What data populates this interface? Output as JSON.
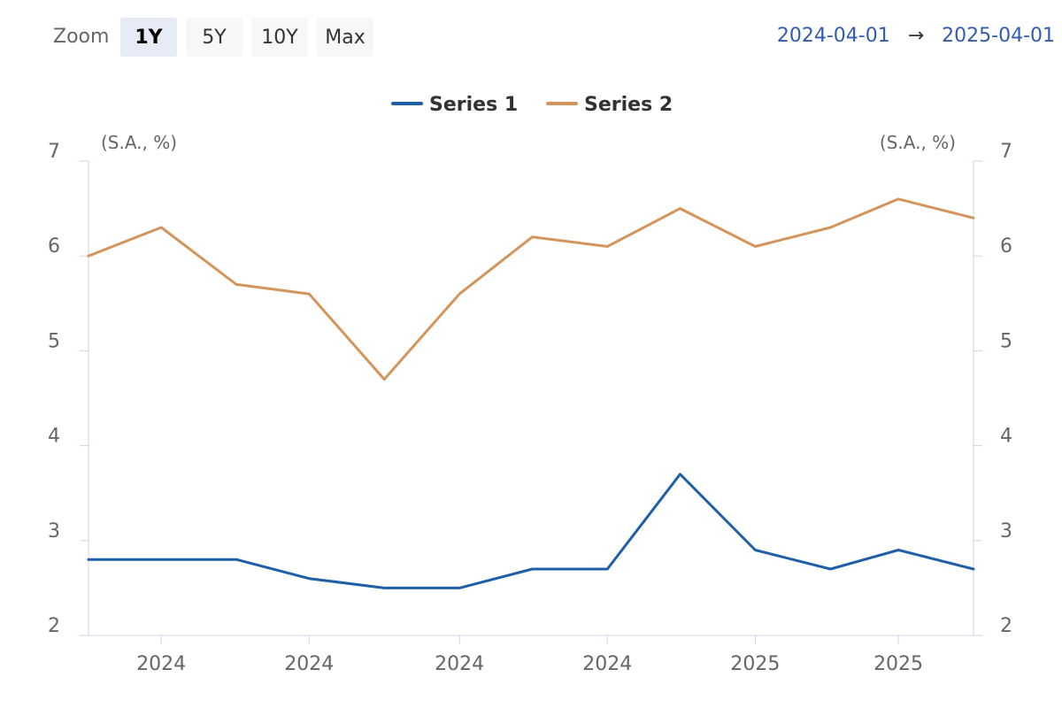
{
  "toolbar": {
    "zoom_label": "Zoom",
    "buttons": [
      {
        "label": "1Y",
        "active": true
      },
      {
        "label": "5Y",
        "active": false
      },
      {
        "label": "10Y",
        "active": false
      },
      {
        "label": "Max",
        "active": false
      }
    ],
    "range_from": "2024-04-01",
    "range_arrow": "→",
    "range_to": "2025-04-01"
  },
  "colors": {
    "series_1": "#1f5fa5",
    "series_2": "#d4955c",
    "axis": "#ccd6eb"
  },
  "chart_data": {
    "type": "line",
    "title": "",
    "xlabel": "",
    "ylabel_left": "(S.A., %)",
    "ylabel_right": "(S.A., %)",
    "ylim": [
      2,
      7
    ],
    "yticks": [
      2,
      3,
      4,
      5,
      6,
      7
    ],
    "grid": false,
    "legend_position": "top-center",
    "x": [
      "2024-04-01",
      "2024-05-01",
      "2024-06-01",
      "2024-07-01",
      "2024-08-01",
      "2024-09-01",
      "2024-10-01",
      "2024-11-01",
      "2024-12-01",
      "2025-01-01",
      "2025-02-01",
      "2025-03-01",
      "2025-04-01"
    ],
    "xticks": [
      {
        "x": "2024-05-01",
        "label": "2024"
      },
      {
        "x": "2024-07-01",
        "label": "2024"
      },
      {
        "x": "2024-09-01",
        "label": "2024"
      },
      {
        "x": "2024-11-01",
        "label": "2024"
      },
      {
        "x": "2025-01-01",
        "label": "2025"
      },
      {
        "x": "2025-03-01",
        "label": "2025"
      }
    ],
    "series": [
      {
        "name": "Series 1",
        "values": [
          2.8,
          2.8,
          2.8,
          2.6,
          2.5,
          2.5,
          2.7,
          2.7,
          3.7,
          2.9,
          2.7,
          2.9,
          2.7
        ]
      },
      {
        "name": "Series 2",
        "values": [
          6.0,
          6.3,
          5.7,
          5.6,
          4.7,
          5.6,
          6.2,
          6.1,
          6.5,
          6.1,
          6.3,
          6.6,
          6.4
        ]
      }
    ]
  }
}
